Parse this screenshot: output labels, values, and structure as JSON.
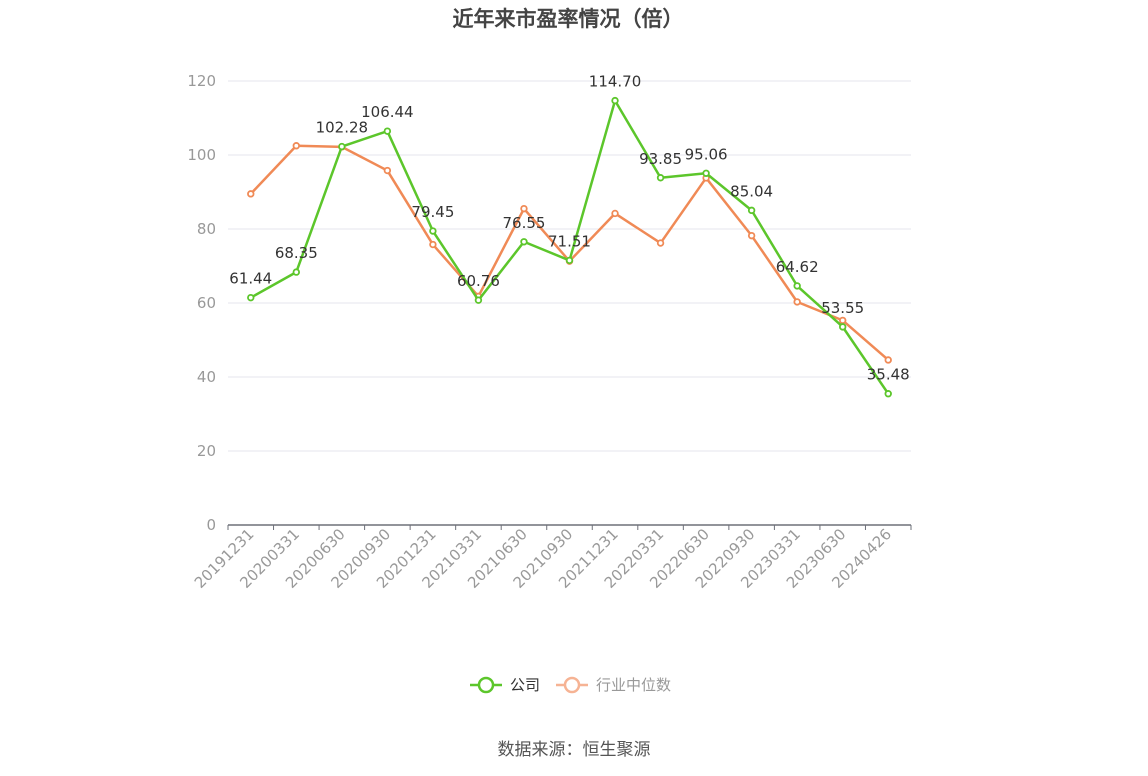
{
  "chart_data": {
    "type": "line",
    "title": "近年来市盈率情况（倍）",
    "categories": [
      "20191231",
      "20200331",
      "20200630",
      "20200930",
      "20201231",
      "20210331",
      "20210630",
      "20210930",
      "20211231",
      "20220331",
      "20220630",
      "20220930",
      "20230331",
      "20230630",
      "20240426"
    ],
    "ylim": [
      0,
      120
    ],
    "yticks": [
      "0",
      "20",
      "40",
      "60",
      "80",
      "100",
      "120"
    ],
    "grid": true,
    "legend_position": "bottom",
    "series": [
      {
        "name": "公司",
        "color": "#5cc62b",
        "values": [
          61.44,
          68.35,
          102.28,
          106.44,
          79.45,
          60.76,
          76.55,
          71.51,
          114.7,
          93.85,
          95.06,
          85.04,
          64.62,
          53.55,
          35.48
        ],
        "labels": [
          "61.44",
          "68.35",
          "102.28",
          "106.44",
          "79.45",
          "60.76",
          "76.55",
          "71.51",
          "114.70",
          "93.85",
          "95.06",
          "85.04",
          "64.62",
          "53.55",
          "35.48"
        ]
      },
      {
        "name": "行业中位数",
        "color": "#f08a56",
        "values": [
          89.5,
          102.5,
          102.2,
          95.8,
          75.8,
          61.8,
          85.5,
          71.3,
          84.2,
          76.2,
          93.8,
          78.2,
          60.3,
          55.3,
          44.6
        ]
      }
    ],
    "source": "数据来源：恒生聚源"
  }
}
